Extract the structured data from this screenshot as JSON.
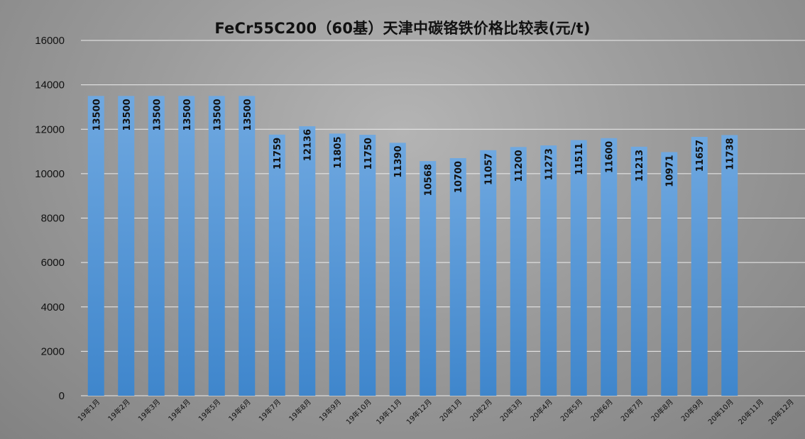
{
  "chart_data": {
    "type": "bar",
    "title": "FeCr55C200（60基）天津中碳铬铁价格比较表(元/t)",
    "xlabel": "",
    "ylabel": "",
    "ylim": [
      0,
      16000
    ],
    "yticks": [
      0,
      2000,
      4000,
      6000,
      8000,
      10000,
      12000,
      14000,
      16000
    ],
    "grid": true,
    "legend": "none",
    "categories": [
      "19年1月",
      "19年2月",
      "19年3月",
      "19年4月",
      "19年5月",
      "19年6月",
      "19年7月",
      "19年8月",
      "19年9月",
      "19年10月",
      "19年11月",
      "19年12月",
      "20年1月",
      "20年2月",
      "20年3月",
      "20年4月",
      "20年5月",
      "20年6月",
      "20年7月",
      "20年8月",
      "20年9月",
      "20年10月",
      "20年11月",
      "20年12月"
    ],
    "values": [
      13500,
      13500,
      13500,
      13500,
      13500,
      13500,
      11759,
      12136,
      11805,
      11750,
      11390,
      10568,
      10700,
      11057,
      11200,
      11273,
      11511,
      11600,
      11213,
      10971,
      11657,
      11738,
      null,
      null
    ],
    "colors": {
      "bar_top": "#6fa8e0",
      "bar_bottom": "#3f86cc",
      "grid": "#ececec",
      "text": "#111111"
    }
  }
}
